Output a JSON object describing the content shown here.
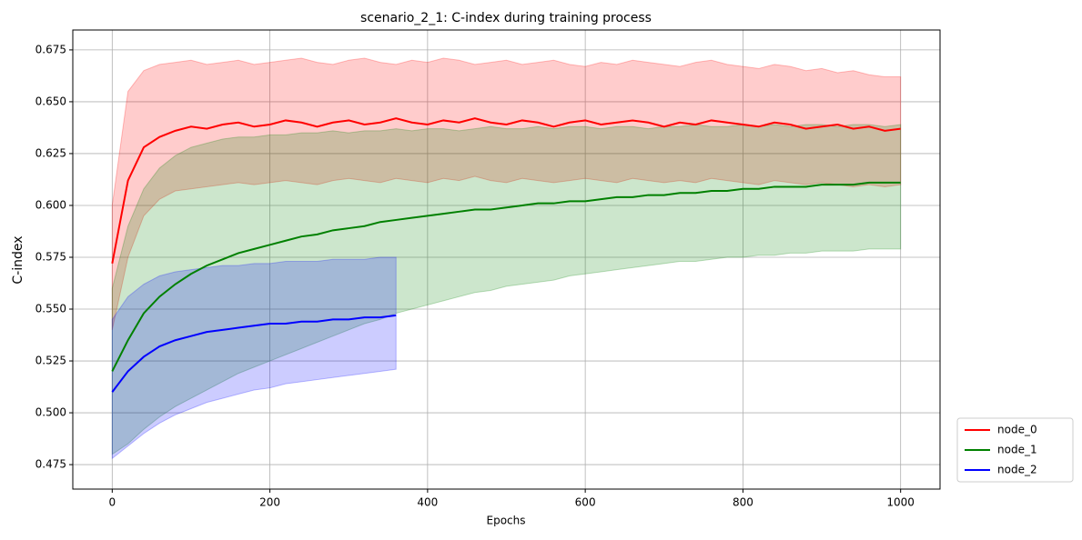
{
  "chart_data": {
    "type": "line",
    "title": "scenario_2_1: C-index during training process",
    "xlabel": "Epochs",
    "ylabel": "C-index",
    "x": [
      0,
      20,
      40,
      60,
      80,
      100,
      120,
      140,
      160,
      180,
      200,
      220,
      240,
      260,
      280,
      300,
      320,
      340,
      360,
      380,
      400,
      420,
      440,
      460,
      480,
      500,
      520,
      540,
      560,
      580,
      600,
      620,
      640,
      660,
      680,
      700,
      720,
      740,
      760,
      780,
      800,
      820,
      840,
      860,
      880,
      900,
      920,
      940,
      960,
      980,
      1000
    ],
    "xlim": [
      -50,
      1050
    ],
    "xticks": [
      0,
      200,
      400,
      600,
      800,
      1000
    ],
    "ylim": [
      0.4632,
      0.6846
    ],
    "yticks": [
      {
        "value": 0.475,
        "label": "0.475"
      },
      {
        "value": 0.5,
        "label": "0.500"
      },
      {
        "value": 0.525,
        "label": "0.525"
      },
      {
        "value": 0.55,
        "label": "0.550"
      },
      {
        "value": 0.575,
        "label": "0.575"
      },
      {
        "value": 0.6,
        "label": "0.600"
      },
      {
        "value": 0.625,
        "label": "0.625"
      },
      {
        "value": 0.65,
        "label": "0.650"
      },
      {
        "value": 0.675,
        "label": "0.675"
      }
    ],
    "grid": true,
    "legend": "outside-lower-right",
    "series": [
      {
        "name": "node_0",
        "color": "#ff0000",
        "values": [
          0.572,
          0.612,
          0.628,
          0.633,
          0.636,
          0.638,
          0.637,
          0.639,
          0.64,
          0.638,
          0.639,
          0.641,
          0.64,
          0.638,
          0.64,
          0.641,
          0.639,
          0.64,
          0.642,
          0.64,
          0.639,
          0.641,
          0.64,
          0.642,
          0.64,
          0.639,
          0.641,
          0.64,
          0.638,
          0.64,
          0.641,
          0.639,
          0.64,
          0.641,
          0.64,
          0.638,
          0.64,
          0.639,
          0.641,
          0.64,
          0.639,
          0.638,
          0.64,
          0.639,
          0.637,
          0.638,
          0.639,
          0.637,
          0.638,
          0.636,
          0.637
        ],
        "upper": [
          0.6,
          0.655,
          0.665,
          0.668,
          0.669,
          0.67,
          0.668,
          0.669,
          0.67,
          0.668,
          0.669,
          0.67,
          0.671,
          0.669,
          0.668,
          0.67,
          0.671,
          0.669,
          0.668,
          0.67,
          0.669,
          0.671,
          0.67,
          0.668,
          0.669,
          0.67,
          0.668,
          0.669,
          0.67,
          0.668,
          0.667,
          0.669,
          0.668,
          0.67,
          0.669,
          0.668,
          0.667,
          0.669,
          0.67,
          0.668,
          0.667,
          0.666,
          0.668,
          0.667,
          0.665,
          0.666,
          0.664,
          0.665,
          0.663,
          0.662,
          0.662
        ],
        "lower": [
          0.54,
          0.575,
          0.595,
          0.603,
          0.607,
          0.608,
          0.609,
          0.61,
          0.611,
          0.61,
          0.611,
          0.612,
          0.611,
          0.61,
          0.612,
          0.613,
          0.612,
          0.611,
          0.613,
          0.612,
          0.611,
          0.613,
          0.612,
          0.614,
          0.612,
          0.611,
          0.613,
          0.612,
          0.611,
          0.612,
          0.613,
          0.612,
          0.611,
          0.613,
          0.612,
          0.611,
          0.612,
          0.611,
          0.613,
          0.612,
          0.611,
          0.61,
          0.612,
          0.611,
          0.61,
          0.611,
          0.61,
          0.609,
          0.61,
          0.609,
          0.61
        ]
      },
      {
        "name": "node_1",
        "color": "#008000",
        "values": [
          0.52,
          0.535,
          0.548,
          0.556,
          0.562,
          0.567,
          0.571,
          0.574,
          0.577,
          0.579,
          0.581,
          0.583,
          0.585,
          0.586,
          0.588,
          0.589,
          0.59,
          0.592,
          0.593,
          0.594,
          0.595,
          0.596,
          0.597,
          0.598,
          0.598,
          0.599,
          0.6,
          0.601,
          0.601,
          0.602,
          0.602,
          0.603,
          0.604,
          0.604,
          0.605,
          0.605,
          0.606,
          0.606,
          0.607,
          0.607,
          0.608,
          0.608,
          0.609,
          0.609,
          0.609,
          0.61,
          0.61,
          0.61,
          0.611,
          0.611,
          0.611
        ],
        "upper": [
          0.56,
          0.59,
          0.608,
          0.618,
          0.624,
          0.628,
          0.63,
          0.632,
          0.633,
          0.633,
          0.634,
          0.634,
          0.635,
          0.635,
          0.636,
          0.635,
          0.636,
          0.636,
          0.637,
          0.636,
          0.637,
          0.637,
          0.636,
          0.637,
          0.638,
          0.637,
          0.637,
          0.638,
          0.637,
          0.638,
          0.638,
          0.637,
          0.638,
          0.638,
          0.637,
          0.638,
          0.638,
          0.639,
          0.638,
          0.638,
          0.639,
          0.638,
          0.639,
          0.638,
          0.639,
          0.639,
          0.638,
          0.639,
          0.639,
          0.638,
          0.639
        ],
        "lower": [
          0.48,
          0.485,
          0.492,
          0.498,
          0.503,
          0.507,
          0.511,
          0.515,
          0.519,
          0.522,
          0.525,
          0.528,
          0.531,
          0.534,
          0.537,
          0.54,
          0.543,
          0.545,
          0.548,
          0.55,
          0.552,
          0.554,
          0.556,
          0.558,
          0.559,
          0.561,
          0.562,
          0.563,
          0.564,
          0.566,
          0.567,
          0.568,
          0.569,
          0.57,
          0.571,
          0.572,
          0.573,
          0.573,
          0.574,
          0.575,
          0.575,
          0.576,
          0.576,
          0.577,
          0.577,
          0.578,
          0.578,
          0.578,
          0.579,
          0.579,
          0.579
        ]
      },
      {
        "name": "node_2",
        "color": "#0000ff",
        "values": [
          0.51,
          0.52,
          0.527,
          0.532,
          0.535,
          0.537,
          0.539,
          0.54,
          0.541,
          0.542,
          0.543,
          0.543,
          0.544,
          0.544,
          0.545,
          0.545,
          0.546,
          0.546,
          0.547,
          null,
          null,
          null,
          null,
          null,
          null,
          null,
          null,
          null,
          null,
          null,
          null,
          null,
          null,
          null,
          null,
          null,
          null,
          null,
          null,
          null,
          null,
          null,
          null,
          null,
          null,
          null,
          null,
          null,
          null,
          null,
          null
        ],
        "upper": [
          0.545,
          0.556,
          0.562,
          0.566,
          0.568,
          0.569,
          0.57,
          0.571,
          0.571,
          0.572,
          0.572,
          0.573,
          0.573,
          0.573,
          0.574,
          0.574,
          0.574,
          0.575,
          0.575,
          null,
          null,
          null,
          null,
          null,
          null,
          null,
          null,
          null,
          null,
          null,
          null,
          null,
          null,
          null,
          null,
          null,
          null,
          null,
          null,
          null,
          null,
          null,
          null,
          null,
          null,
          null,
          null,
          null,
          null,
          null,
          null
        ],
        "lower": [
          0.478,
          0.484,
          0.49,
          0.495,
          0.499,
          0.502,
          0.505,
          0.507,
          0.509,
          0.511,
          0.512,
          0.514,
          0.515,
          0.516,
          0.517,
          0.518,
          0.519,
          0.52,
          0.521,
          null,
          null,
          null,
          null,
          null,
          null,
          null,
          null,
          null,
          null,
          null,
          null,
          null,
          null,
          null,
          null,
          null,
          null,
          null,
          null,
          null,
          null,
          null,
          null,
          null,
          null,
          null,
          null,
          null,
          null,
          null,
          null
        ]
      }
    ]
  }
}
